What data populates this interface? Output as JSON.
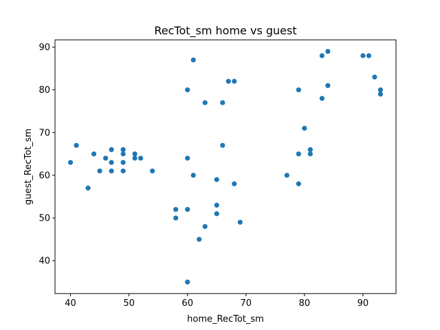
{
  "chart_data": {
    "type": "scatter",
    "title": "RecTot_sm home vs guest",
    "xlabel": "home_RecTot_sm",
    "ylabel": "guest_RecTot_sm",
    "xlim": [
      37.35,
      95.65
    ],
    "ylim": [
      32.3,
      91.7
    ],
    "xticks": [
      40,
      50,
      60,
      70,
      80,
      90
    ],
    "yticks": [
      40,
      50,
      60,
      70,
      80,
      90
    ],
    "grid": false,
    "marker_color": "#1f77b4",
    "points": [
      {
        "x": 40,
        "y": 63
      },
      {
        "x": 41,
        "y": 67
      },
      {
        "x": 43,
        "y": 57
      },
      {
        "x": 44,
        "y": 65
      },
      {
        "x": 45,
        "y": 61
      },
      {
        "x": 46,
        "y": 64
      },
      {
        "x": 47,
        "y": 66
      },
      {
        "x": 47,
        "y": 63
      },
      {
        "x": 47,
        "y": 61
      },
      {
        "x": 49,
        "y": 66
      },
      {
        "x": 49,
        "y": 65
      },
      {
        "x": 49,
        "y": 63
      },
      {
        "x": 49,
        "y": 61
      },
      {
        "x": 51,
        "y": 65
      },
      {
        "x": 51,
        "y": 64
      },
      {
        "x": 52,
        "y": 64
      },
      {
        "x": 54,
        "y": 61
      },
      {
        "x": 58,
        "y": 52
      },
      {
        "x": 58,
        "y": 50
      },
      {
        "x": 60,
        "y": 80
      },
      {
        "x": 60,
        "y": 64
      },
      {
        "x": 60,
        "y": 52
      },
      {
        "x": 60,
        "y": 35
      },
      {
        "x": 61,
        "y": 87
      },
      {
        "x": 61,
        "y": 60
      },
      {
        "x": 62,
        "y": 45
      },
      {
        "x": 63,
        "y": 77
      },
      {
        "x": 63,
        "y": 48
      },
      {
        "x": 65,
        "y": 59
      },
      {
        "x": 65,
        "y": 53
      },
      {
        "x": 65,
        "y": 51
      },
      {
        "x": 66,
        "y": 77
      },
      {
        "x": 66,
        "y": 67
      },
      {
        "x": 67,
        "y": 82
      },
      {
        "x": 68,
        "y": 82
      },
      {
        "x": 68,
        "y": 58
      },
      {
        "x": 69,
        "y": 49
      },
      {
        "x": 77,
        "y": 60
      },
      {
        "x": 79,
        "y": 80
      },
      {
        "x": 79,
        "y": 65
      },
      {
        "x": 79,
        "y": 58
      },
      {
        "x": 80,
        "y": 71
      },
      {
        "x": 81,
        "y": 66
      },
      {
        "x": 81,
        "y": 65
      },
      {
        "x": 83,
        "y": 88
      },
      {
        "x": 83,
        "y": 78
      },
      {
        "x": 84,
        "y": 89
      },
      {
        "x": 84,
        "y": 81
      },
      {
        "x": 90,
        "y": 88
      },
      {
        "x": 91,
        "y": 88
      },
      {
        "x": 92,
        "y": 83
      },
      {
        "x": 93,
        "y": 80
      },
      {
        "x": 93,
        "y": 79
      }
    ]
  }
}
